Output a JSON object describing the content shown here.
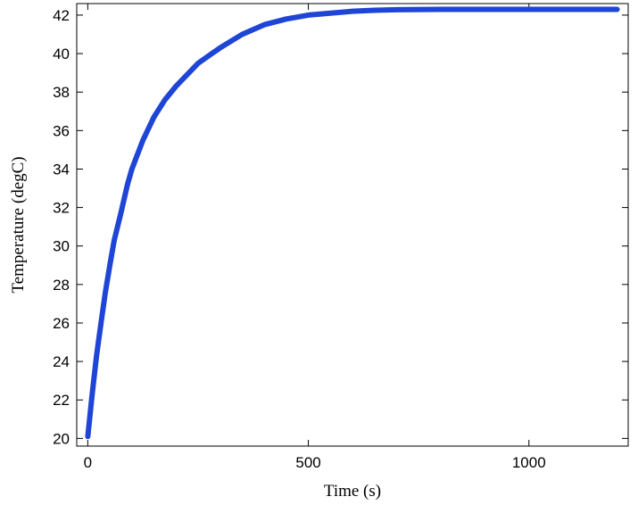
{
  "chart_data": {
    "type": "line",
    "title": "",
    "xlabel": "Time (s)",
    "ylabel": "Temperature (degC)",
    "xlim": [
      -25,
      1225
    ],
    "ylim": [
      19.6,
      42.6
    ],
    "xticks": [
      0,
      500,
      1000
    ],
    "yticks": [
      20,
      22,
      24,
      26,
      28,
      30,
      32,
      34,
      36,
      38,
      40,
      42
    ],
    "grid": false,
    "legend": "none",
    "series": [
      {
        "color": "#1f45d6",
        "x": [
          0,
          10,
          20,
          30,
          40,
          50,
          60,
          75,
          90,
          100,
          125,
          150,
          175,
          200,
          225,
          250,
          275,
          300,
          350,
          400,
          450,
          500,
          550,
          600,
          650,
          700,
          800,
          900,
          1000,
          1100,
          1200
        ],
        "y": [
          20.1,
          22.3,
          24.3,
          26.0,
          27.6,
          29.0,
          30.3,
          31.7,
          33.2,
          34.0,
          35.5,
          36.7,
          37.6,
          38.3,
          38.9,
          39.5,
          39.9,
          40.3,
          41.0,
          41.5,
          41.8,
          42.0,
          42.1,
          42.2,
          42.25,
          42.28,
          42.3,
          42.3,
          42.3,
          42.3,
          42.3
        ]
      }
    ]
  }
}
